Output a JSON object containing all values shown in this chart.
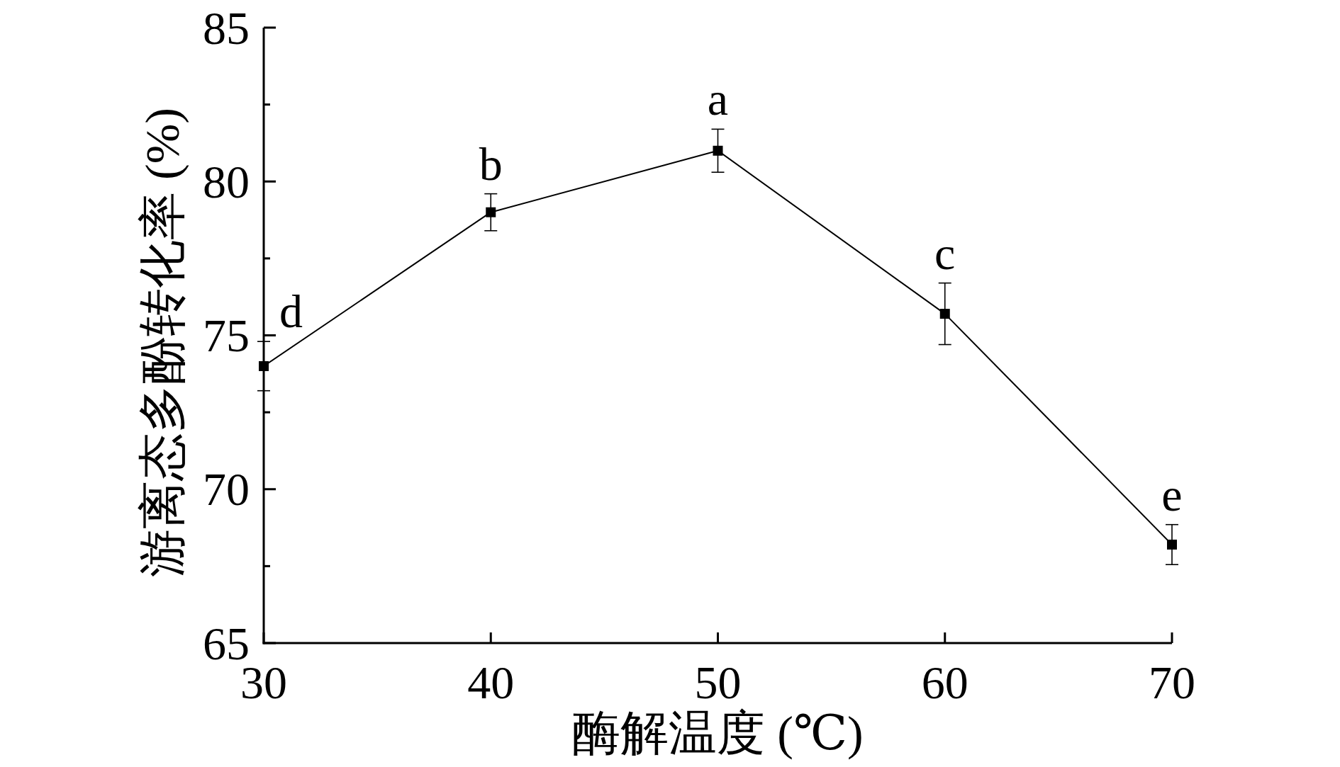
{
  "chart_data": {
    "type": "line",
    "xlabel": "酶解温度 (℃)",
    "ylabel": "游离态多酚转化率 (%)",
    "x": [
      30,
      40,
      50,
      60,
      70
    ],
    "series": [
      {
        "color": "#000000",
        "values": [
          74.0,
          79.0,
          81.0,
          75.7,
          68.2
        ],
        "errors": [
          0.8,
          0.6,
          0.7,
          1.0,
          0.65
        ]
      }
    ],
    "xlim": [
      30,
      70
    ],
    "ylim": [
      65,
      85
    ],
    "xticks": [
      30,
      40,
      50,
      60,
      70
    ],
    "yticks": [
      65,
      {
        "value": 67.5,
        "label": null
      },
      70,
      {
        "value": 72.5,
        "label": null
      },
      75,
      {
        "value": 77.5,
        "label": null
      },
      80,
      {
        "value": 82.5,
        "label": null
      },
      85
    ],
    "marker": "square",
    "line_style": "solid",
    "annotations": [
      {
        "text": "d",
        "x": 30,
        "y": 74.0
      },
      {
        "text": "b",
        "x": 40,
        "y": 79.0
      },
      {
        "text": "a",
        "x": 50,
        "y": 81.0
      },
      {
        "text": "c",
        "x": 60,
        "y": 75.7
      },
      {
        "text": "e",
        "x": 70,
        "y": 68.2
      }
    ]
  }
}
